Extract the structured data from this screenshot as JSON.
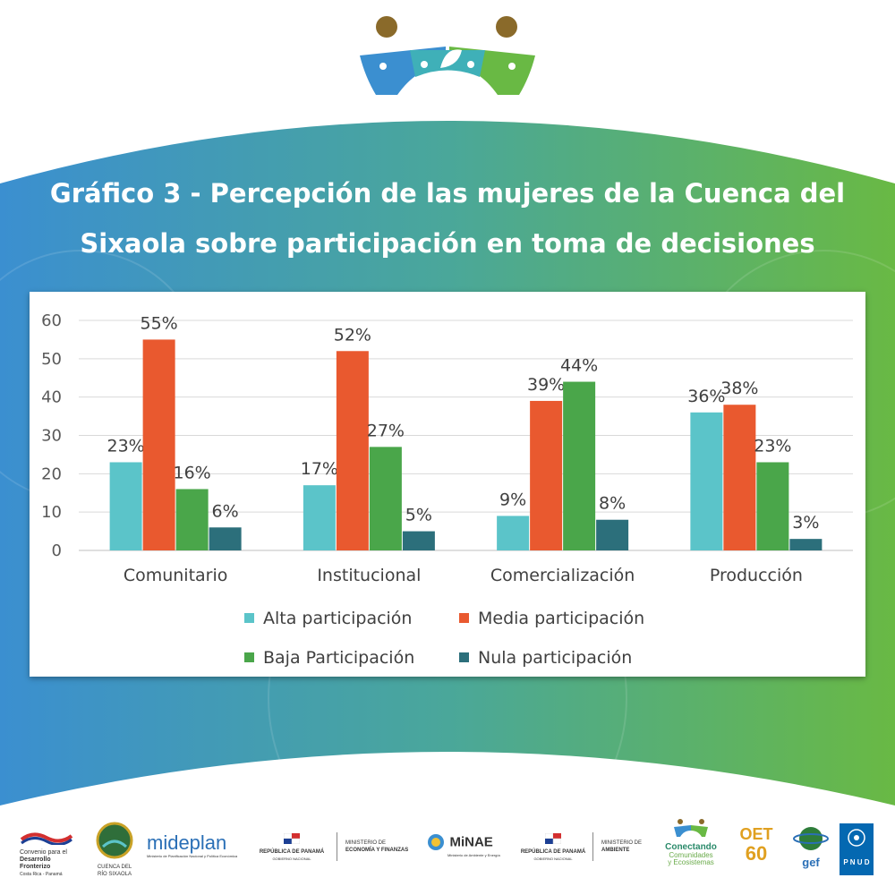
{
  "title": {
    "line1": "Gráfico 3 - Percepción de las mujeres de la Cuenca del",
    "line2": "Sixaola sobre participación en toma de decisiones"
  },
  "colors": {
    "band_left": "#3b8fd0",
    "band_right": "#69b944",
    "alta": "#5bc4c9",
    "media": "#e9592f",
    "baja": "#4aa64a",
    "nula": "#2c6f7b"
  },
  "chart_data": {
    "type": "bar",
    "categories": [
      "Comunitario",
      "Institucional",
      "Comercialización",
      "Producción"
    ],
    "series": [
      {
        "name": "Alta participación",
        "values": [
          23,
          17,
          9,
          36
        ],
        "labels": [
          "23%",
          "17%",
          "9%",
          "36%"
        ]
      },
      {
        "name": "Media participación",
        "values": [
          55,
          52,
          39,
          38
        ],
        "labels": [
          "55%",
          "52%",
          "39%",
          "38%"
        ]
      },
      {
        "name": "Baja Participación",
        "values": [
          16,
          27,
          44,
          23
        ],
        "labels": [
          "16%",
          "27%",
          "44%",
          "23%"
        ]
      },
      {
        "name": "Nula participación",
        "values": [
          6,
          5,
          8,
          3
        ],
        "labels": [
          "6%",
          "5%",
          "8%",
          "3%"
        ]
      }
    ],
    "y_ticks": [
      "0",
      "10",
      "20",
      "30",
      "40",
      "50",
      "60"
    ],
    "ylim": [
      0,
      60
    ],
    "grid": true,
    "legend_position": "bottom"
  },
  "logos": {
    "convenio": {
      "line1": "Convenio para el",
      "line2": "Desarrollo Fronterizo",
      "line3": "Costa Rica - Panamá"
    },
    "cuenca": {
      "line1": "CUENCA DEL",
      "line2": "RÍO SIXAOLA"
    },
    "mideplan": {
      "name": "mideplan",
      "sub": "Ministerio de Planificación Nacional y Política Económica"
    },
    "panama1": {
      "line1": "REPÚBLICA DE PANAMÁ",
      "line2": "GOBIERNO NACIONAL"
    },
    "mef": {
      "line1": "MINISTERIO DE",
      "line2": "ECONOMÍA Y FINANZAS"
    },
    "minae": {
      "name": "MiNAE",
      "sub": "Ministerio de Ambiente y Energía"
    },
    "panama2": {
      "line1": "REPÚBLICA DE PANAMÁ",
      "line2": "GOBIERNO NACIONAL"
    },
    "miambiente": {
      "line1": "MINISTERIO DE",
      "line2": "AMBIENTE"
    },
    "conectando": {
      "line1": "Conectando",
      "line2": "Comunidades",
      "line3": "y Ecosistemas"
    },
    "oet": {
      "name": "OET",
      "num": "60"
    },
    "gef": {
      "name": "gef"
    },
    "pnud": {
      "name": "P N U D"
    }
  }
}
